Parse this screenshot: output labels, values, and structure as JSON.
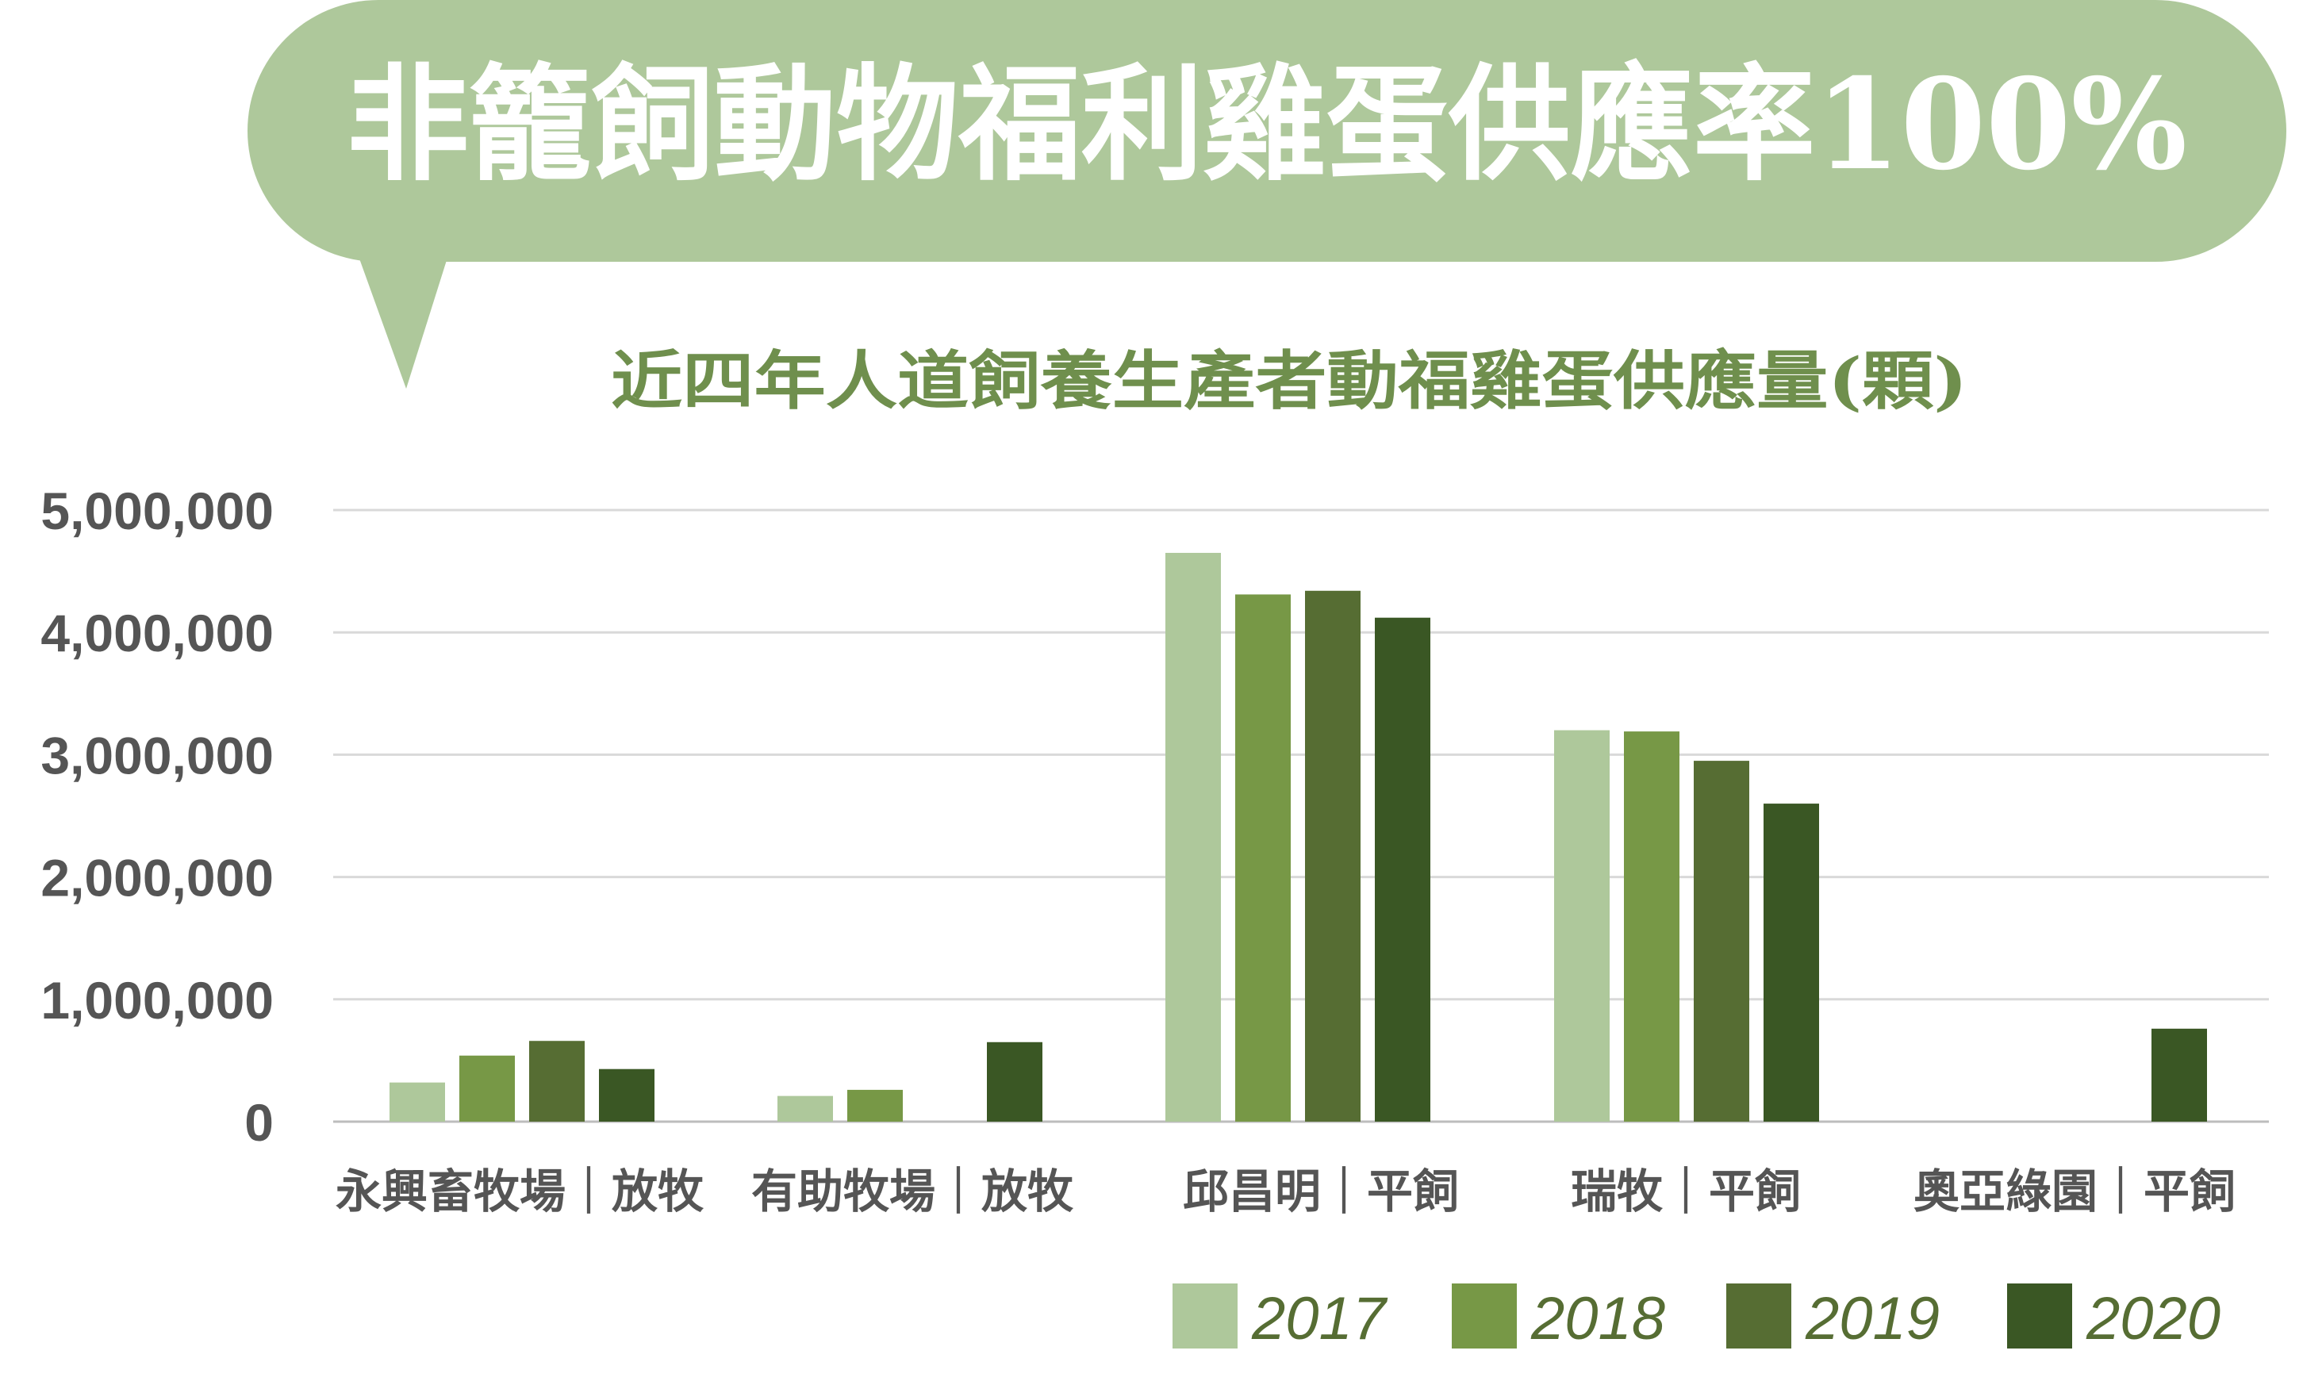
{
  "banner": {
    "text": "非籠飼動物福利雞蛋供應率100%",
    "color": "#aec89b"
  },
  "chart_data": {
    "type": "bar",
    "title": "近四年人道飼養生產者動福雞蛋供應量(顆)",
    "title_color": "#6f8f4d",
    "categories": [
      "永興畜牧場｜放牧",
      "有助牧場｜放牧",
      "邱昌明｜平飼",
      "瑞牧｜平飼",
      "奧亞綠園｜平飼"
    ],
    "series": [
      {
        "name": "2017",
        "color": "#aec89b",
        "values": [
          320000,
          210000,
          4650000,
          3200000,
          null
        ]
      },
      {
        "name": "2018",
        "color": "#779846",
        "values": [
          540000,
          260000,
          4310000,
          3190000,
          null
        ]
      },
      {
        "name": "2019",
        "color": "#566d33",
        "values": [
          660000,
          null,
          4340000,
          2950000,
          null
        ]
      },
      {
        "name": "2020",
        "color": "#3a5724",
        "values": [
          430000,
          650000,
          4120000,
          2600000,
          760000
        ]
      }
    ],
    "yticks": [
      "0",
      "1,000,000",
      "2,000,000",
      "3,000,000",
      "4,000,000",
      "5,000,000"
    ],
    "ylim": [
      0,
      5000000
    ],
    "grid": true,
    "legend_position": "bottom-right",
    "legend_text_color": "#566d33"
  }
}
